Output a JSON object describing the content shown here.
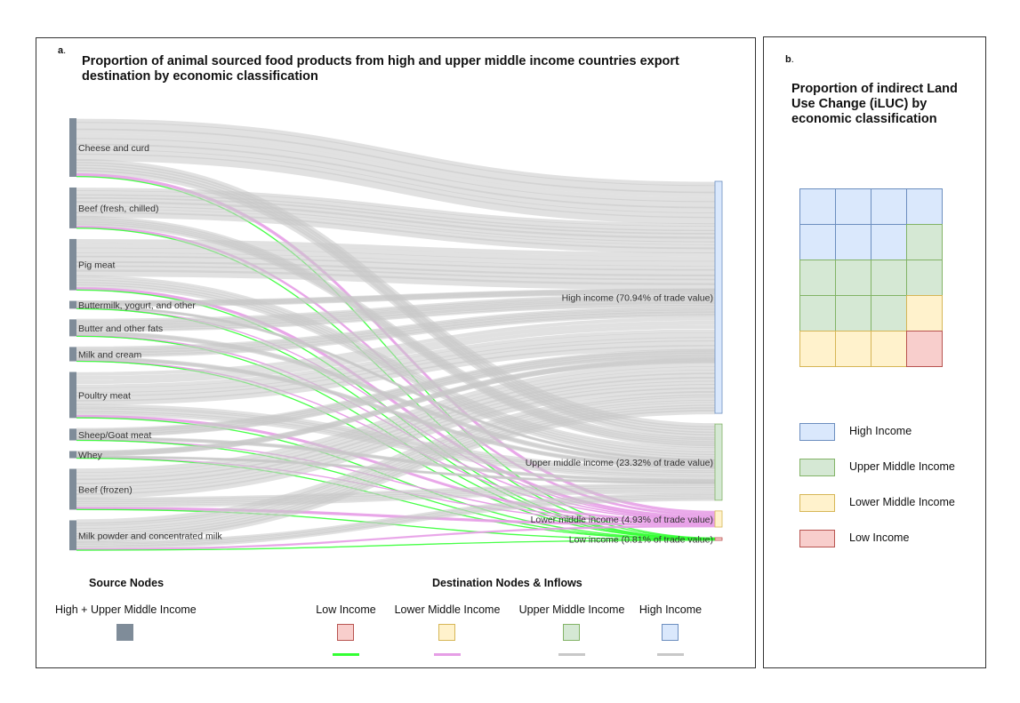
{
  "panel_a": {
    "letter": "a",
    "title": "Proportion of animal sourced food products from high and upper middle income countries export destination by economic classification"
  },
  "panel_b": {
    "letter": "b",
    "title": "Proportion of indirect Land Use Change (iLUC) by economic classification"
  },
  "colors": {
    "source_node": "#7f8c99",
    "high": {
      "fill": "#dae8fc",
      "border": "#6c8ebf",
      "flow": "#c8c8c8"
    },
    "upper_middle": {
      "fill": "#d5e8d4",
      "border": "#82b366",
      "flow": "#c8c8c8"
    },
    "lower_middle": {
      "fill": "#fff2cc",
      "border": "#d6b656",
      "flow": "#e69ee6"
    },
    "low": {
      "fill": "#f8cecc",
      "border": "#b85450",
      "flow": "#33ff33"
    }
  },
  "chart_data": [
    {
      "type": "sankey",
      "title": "Proportion of animal sourced food products from high and upper middle income countries export destination by economic classification",
      "sources": [
        {
          "name": "Cheese and curd",
          "relative_size": 0.135
        },
        {
          "name": "Beef (fresh, chilled)",
          "relative_size": 0.094
        },
        {
          "name": "Pig meat",
          "relative_size": 0.118
        },
        {
          "name": "Buttermilk, yogurt, and other",
          "relative_size": 0.018
        },
        {
          "name": "Butter and other fats",
          "relative_size": 0.039
        },
        {
          "name": "Milk and cream",
          "relative_size": 0.033
        },
        {
          "name": "Poultry meat",
          "relative_size": 0.106
        },
        {
          "name": "Sheep/Goat meat",
          "relative_size": 0.027
        },
        {
          "name": "Whey",
          "relative_size": 0.016
        },
        {
          "name": "Beef (frozen)",
          "relative_size": 0.094
        },
        {
          "name": "Milk powder and concentrated milk",
          "relative_size": 0.069
        }
      ],
      "destinations": [
        {
          "key": "high",
          "label": "High income (70.94% of trade value)",
          "share_pct": 70.94
        },
        {
          "key": "upper_middle",
          "label": "Upper middle income (23.32% of trade value)",
          "share_pct": 23.32
        },
        {
          "key": "lower_middle",
          "label": "Lower middle income (4.93% of trade value)",
          "share_pct": 4.93
        },
        {
          "key": "low",
          "label": "Low income (0.81% of trade value)",
          "share_pct": 0.81
        }
      ]
    },
    {
      "type": "waffle",
      "title": "Proportion of indirect Land Use Change (iLUC) by economic classification",
      "grid": {
        "columns": 4,
        "rows": 5
      },
      "cells": [
        "high",
        "high",
        "high",
        "high",
        "high",
        "high",
        "high",
        "upper_middle",
        "upper_middle",
        "upper_middle",
        "upper_middle",
        "upper_middle",
        "upper_middle",
        "upper_middle",
        "upper_middle",
        "lower_middle",
        "lower_middle",
        "lower_middle",
        "lower_middle",
        "low"
      ],
      "counts": {
        "high": 7,
        "upper_middle": 8,
        "lower_middle": 4,
        "low": 1
      }
    }
  ],
  "legend_a": {
    "source_heading": "Source Nodes",
    "source_item": "High + Upper Middle Income",
    "dest_heading": "Destination Nodes & Inflows",
    "dest_items": [
      {
        "key": "low",
        "label": "Low Income"
      },
      {
        "key": "lower_middle",
        "label": "Lower Middle Income"
      },
      {
        "key": "upper_middle",
        "label": "Upper Middle Income"
      },
      {
        "key": "high",
        "label": "High Income"
      }
    ]
  },
  "legend_b": [
    {
      "key": "high",
      "label": "High Income"
    },
    {
      "key": "upper_middle",
      "label": "Upper Middle Income"
    },
    {
      "key": "lower_middle",
      "label": "Lower Middle Income"
    },
    {
      "key": "low",
      "label": "Low Income"
    }
  ]
}
